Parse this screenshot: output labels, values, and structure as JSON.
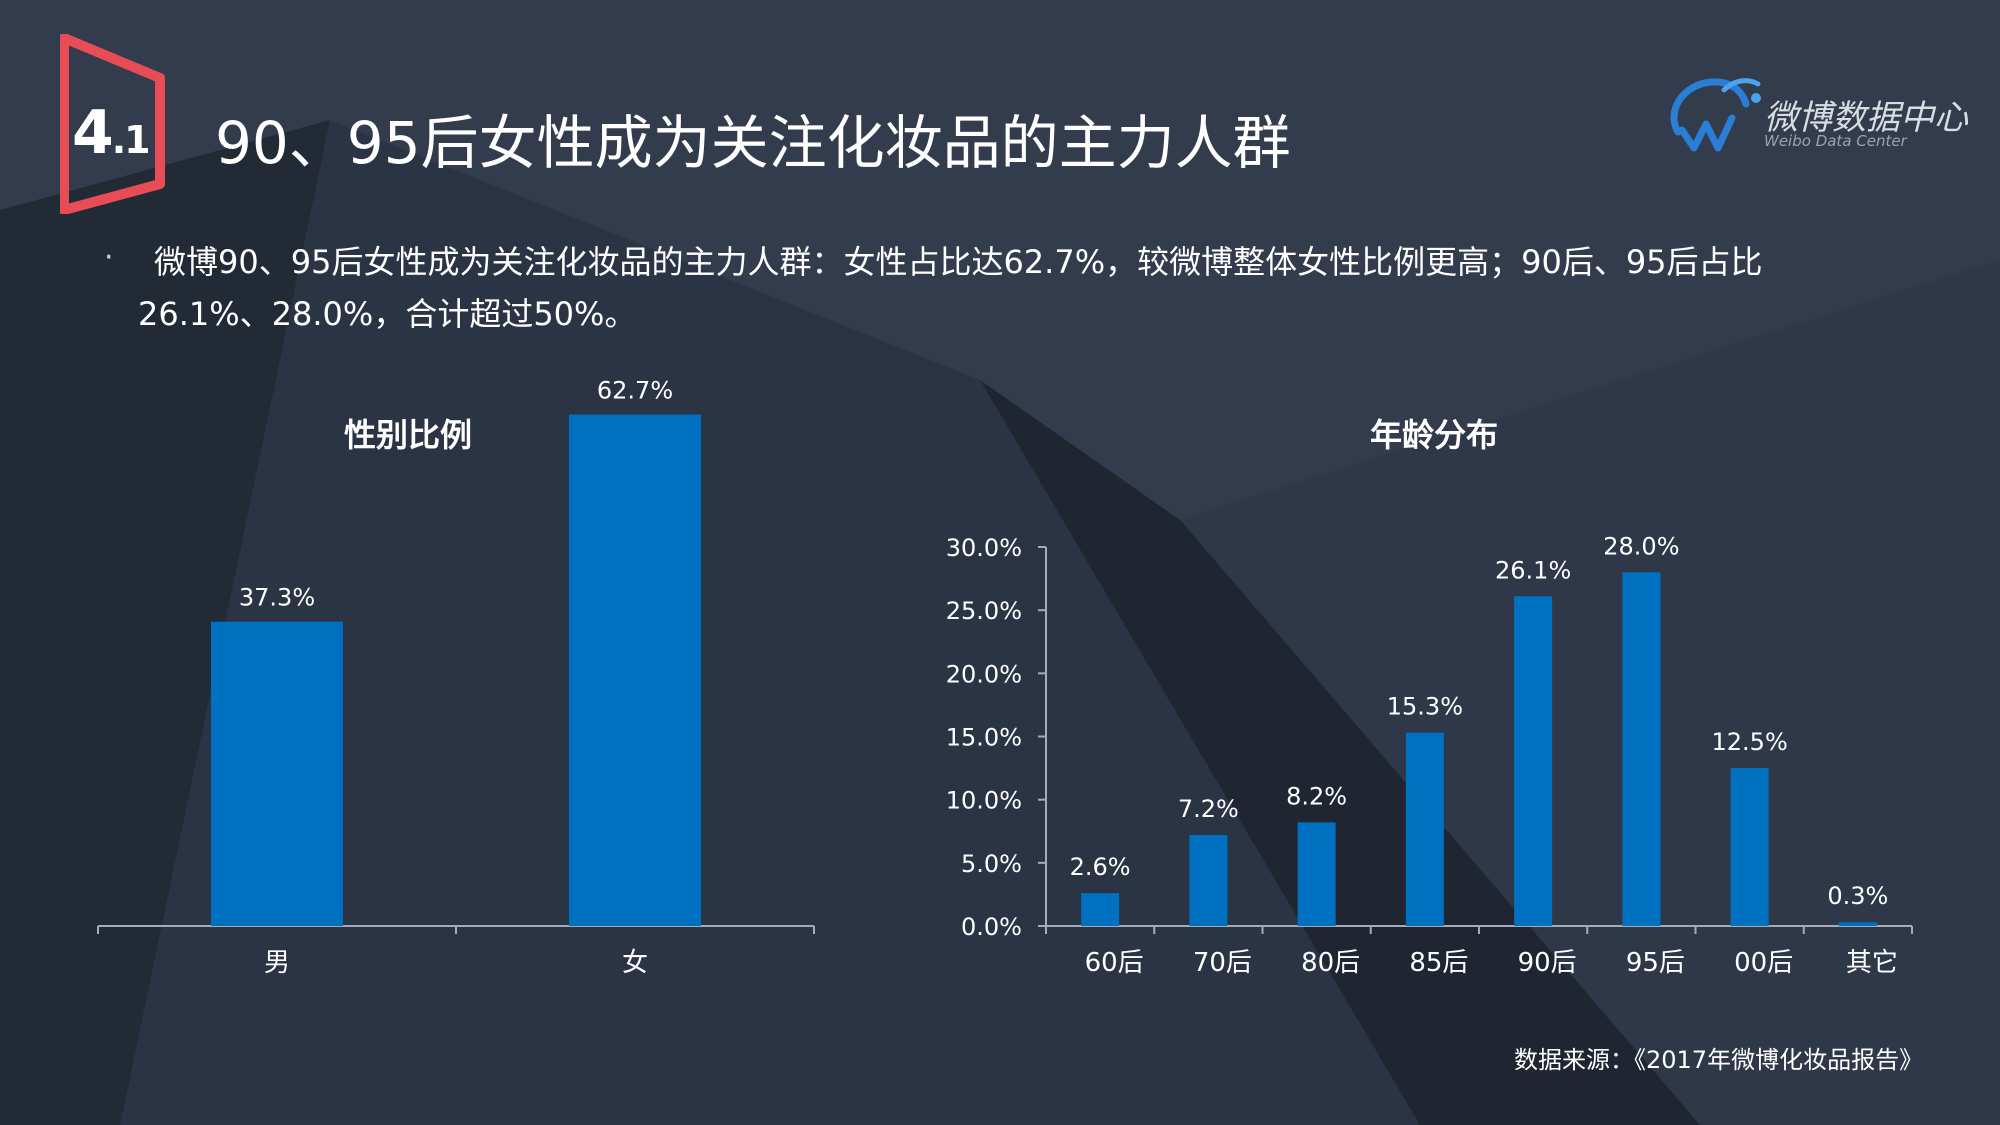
{
  "badge": {
    "number": "4",
    "sub": ".1"
  },
  "title": "90、95后女性成为关注化妆品的主力人群",
  "logo": {
    "name": "微博数据中心",
    "sub": "Weibo Data Center"
  },
  "bullet": "微博90、95后女性成为关注化妆品的主力人群：女性占比达62.7%，较微博整体女性比例更高；90后、95后占比26.1%、28.0%，合计超过50%。",
  "source": "数据来源：《2017年微博化妆品报告》",
  "colors": {
    "bar": "#0070c0",
    "badge": "#e84c55",
    "axis": "#a6acb5"
  },
  "chart_data": [
    {
      "type": "bar",
      "title": "性别比例",
      "categories": [
        "男",
        "女"
      ],
      "values": [
        37.3,
        62.7
      ],
      "labels": [
        "37.3%",
        "62.7%"
      ],
      "ylim": [
        0,
        70
      ],
      "grid": false
    },
    {
      "type": "bar",
      "title": "年龄分布",
      "categories": [
        "60后",
        "70后",
        "80后",
        "85后",
        "90后",
        "95后",
        "00后",
        "其它"
      ],
      "values": [
        2.6,
        7.2,
        8.2,
        15.3,
        26.1,
        28.0,
        12.5,
        0.3
      ],
      "labels": [
        "2.6%",
        "7.2%",
        "8.2%",
        "15.3%",
        "26.1%",
        "28.0%",
        "12.5%",
        "0.3%"
      ],
      "yticks": [
        "0.0%",
        "5.0%",
        "10.0%",
        "15.0%",
        "20.0%",
        "25.0%",
        "30.0%"
      ],
      "ylim": [
        0,
        30
      ],
      "grid": false
    }
  ]
}
